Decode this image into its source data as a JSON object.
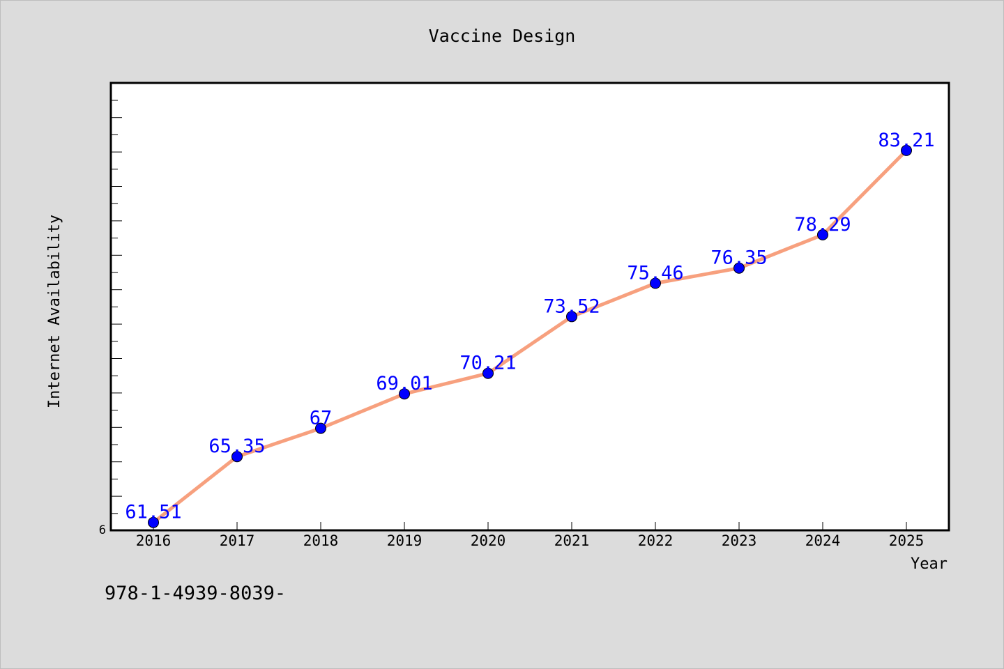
{
  "chart_data": {
    "type": "line",
    "title": "Vaccine Design",
    "xlabel": "Year",
    "ylabel": "Internet Availability",
    "categories": [
      "2016",
      "2017",
      "2018",
      "2019",
      "2020",
      "2021",
      "2022",
      "2023",
      "2024",
      "2025"
    ],
    "series": [
      {
        "values": [
          61.51,
          65.35,
          67,
          69.01,
          70.21,
          73.52,
          75.46,
          76.35,
          78.29,
          83.21
        ],
        "data_labels": [
          "61.51",
          "65.35",
          "67",
          "69.01",
          "70.21",
          "73.52",
          "75.46",
          "76.35",
          "78.29",
          "83.21"
        ],
        "line_color": "#f7a07e",
        "marker_color": "#0000ff"
      }
    ],
    "ylim": [
      61.05,
      87.15
    ],
    "ytick_labels": [
      "6"
    ],
    "label_color": "#0000ff",
    "grid": false
  },
  "caption": "978-1-4939-8039-"
}
